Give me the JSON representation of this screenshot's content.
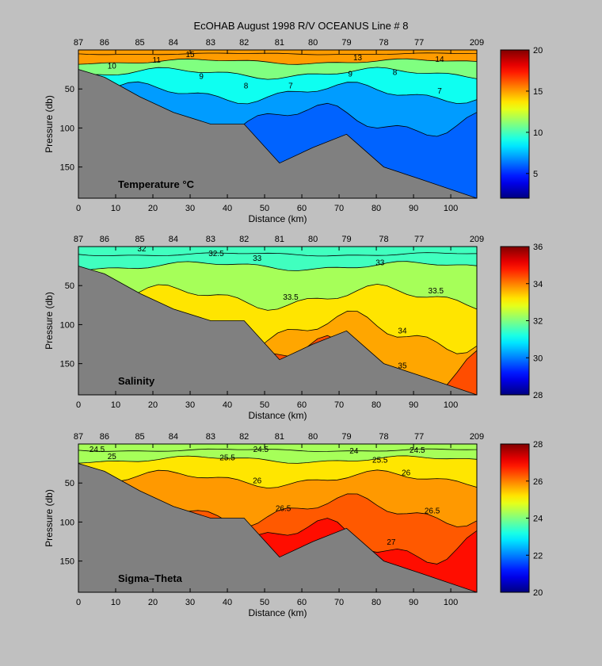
{
  "title": "EcOHAB   August 1998   R/V OCEANUS   Line # 8",
  "chart_data": [
    {
      "type": "heatmap",
      "panel_label": "Temperature",
      "panel_label_unit": "°C",
      "xlabel": "Distance (km)",
      "ylabel": "Pressure (db)",
      "xlim": [
        0,
        107
      ],
      "ylim": [
        190,
        0
      ],
      "xticks": [
        0,
        10,
        20,
        30,
        40,
        50,
        60,
        70,
        80,
        90,
        100
      ],
      "yticks": [
        50,
        100,
        150
      ],
      "stations": [
        "87",
        "86",
        "85",
        "84",
        "83",
        "82",
        "81",
        "80",
        "79",
        "78",
        "77",
        "209"
      ],
      "station_x": [
        0,
        7,
        16.5,
        25.5,
        35.5,
        44.5,
        54,
        63,
        72,
        82,
        91.5,
        107
      ],
      "bottom_depth": [
        25,
        35,
        60,
        80,
        95,
        95,
        145,
        125,
        108,
        150,
        165,
        190
      ],
      "bands_depth": [
        5,
        15,
        30,
        55,
        90
      ],
      "bands_value": [
        15,
        11,
        9,
        7,
        6
      ],
      "colorbar": {
        "min": 2,
        "max": 20,
        "ticks": [
          5,
          10,
          15,
          20
        ]
      },
      "contour_labels": [
        {
          "text": "15",
          "x": 30,
          "y": 5
        },
        {
          "text": "11",
          "x": 21,
          "y": 12
        },
        {
          "text": "10",
          "x": 9,
          "y": 20
        },
        {
          "text": "9",
          "x": 33,
          "y": 33
        },
        {
          "text": "8",
          "x": 45,
          "y": 45
        },
        {
          "text": "7",
          "x": 57,
          "y": 45
        },
        {
          "text": "9",
          "x": 73,
          "y": 30
        },
        {
          "text": "8",
          "x": 85,
          "y": 28
        },
        {
          "text": "7",
          "x": 97,
          "y": 52
        },
        {
          "text": "13",
          "x": 75,
          "y": 9
        },
        {
          "text": "14",
          "x": 97,
          "y": 11
        }
      ]
    },
    {
      "type": "heatmap",
      "panel_label": "Salinity",
      "xlabel": "Distance (km)",
      "ylabel": "Pressure (db)",
      "xlim": [
        0,
        107
      ],
      "ylim": [
        190,
        0
      ],
      "xticks": [
        0,
        10,
        20,
        30,
        40,
        50,
        60,
        70,
        80,
        90,
        100
      ],
      "yticks": [
        50,
        100,
        150
      ],
      "stations": [
        "87",
        "86",
        "85",
        "84",
        "83",
        "82",
        "81",
        "80",
        "79",
        "78",
        "77",
        "209"
      ],
      "station_x": [
        0,
        7,
        16.5,
        25.5,
        35.5,
        44.5,
        54,
        63,
        72,
        82,
        91.5,
        107
      ],
      "bottom_depth": [
        25,
        35,
        60,
        80,
        95,
        95,
        145,
        125,
        108,
        150,
        165,
        190
      ],
      "bands_depth": [
        10,
        25,
        65,
        110,
        150
      ],
      "bands_value": [
        31.5,
        32.3,
        33.2,
        33.7,
        34.4
      ],
      "colorbar": {
        "min": 28,
        "max": 36,
        "ticks": [
          28,
          30,
          32,
          34,
          36
        ]
      },
      "contour_labels": [
        {
          "text": "32.5",
          "x": 37,
          "y": 8
        },
        {
          "text": "33",
          "x": 48,
          "y": 14
        },
        {
          "text": "33",
          "x": 81,
          "y": 20
        },
        {
          "text": "33.5",
          "x": 57,
          "y": 64
        },
        {
          "text": "33.5",
          "x": 96,
          "y": 56
        },
        {
          "text": "34",
          "x": 87,
          "y": 107
        },
        {
          "text": "35",
          "x": 87,
          "y": 152
        },
        {
          "text": "32",
          "x": 17,
          "y": 2
        }
      ]
    },
    {
      "type": "heatmap",
      "panel_label": "Sigma–Theta",
      "xlabel": "Distance (km)",
      "ylabel": "Pressure (db)",
      "xlim": [
        0,
        107
      ],
      "ylim": [
        190,
        0
      ],
      "xticks": [
        0,
        10,
        20,
        30,
        40,
        50,
        60,
        70,
        80,
        90,
        100
      ],
      "yticks": [
        50,
        100,
        150
      ],
      "stations": [
        "87",
        "86",
        "85",
        "84",
        "83",
        "82",
        "81",
        "80",
        "79",
        "78",
        "77",
        "209"
      ],
      "station_x": [
        0,
        7,
        16.5,
        25.5,
        35.5,
        44.5,
        54,
        63,
        72,
        82,
        91.5,
        107
      ],
      "bottom_depth": [
        25,
        35,
        60,
        80,
        95,
        95,
        145,
        125,
        108,
        150,
        165,
        190
      ],
      "bands_depth": [
        8,
        20,
        45,
        85,
        125
      ],
      "bands_value": [
        24.3,
        25.2,
        25.8,
        26.3,
        26.9
      ],
      "colorbar": {
        "min": 20,
        "max": 28,
        "ticks": [
          20,
          22,
          24,
          26,
          28
        ]
      },
      "contour_labels": [
        {
          "text": "24.5",
          "x": 5,
          "y": 6
        },
        {
          "text": "25",
          "x": 9,
          "y": 15
        },
        {
          "text": "24.5",
          "x": 49,
          "y": 6
        },
        {
          "text": "25.5",
          "x": 40,
          "y": 17
        },
        {
          "text": "24",
          "x": 74,
          "y": 8
        },
        {
          "text": "25.5",
          "x": 81,
          "y": 20
        },
        {
          "text": "24.5",
          "x": 91,
          "y": 7
        },
        {
          "text": "26",
          "x": 48,
          "y": 46
        },
        {
          "text": "26",
          "x": 88,
          "y": 36
        },
        {
          "text": "26.5",
          "x": 55,
          "y": 82
        },
        {
          "text": "26.5",
          "x": 95,
          "y": 85
        },
        {
          "text": "27",
          "x": 84,
          "y": 125
        }
      ]
    }
  ]
}
